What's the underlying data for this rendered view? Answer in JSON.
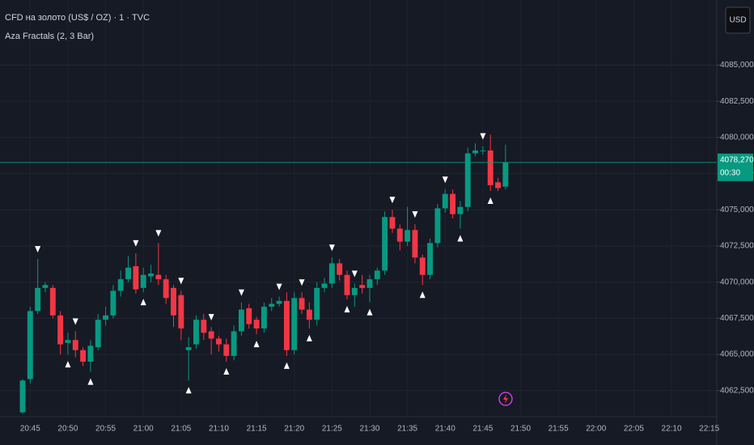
{
  "header": {
    "symbol": "CFD на золото (US$ / OZ) · 1 · TVC",
    "indicator": "Aza Fractals (2, 3 Bar)",
    "currency": "USD"
  },
  "chart_data": {
    "type": "candlestick",
    "x": [
      "20:44",
      "20:45",
      "20:46",
      "20:47",
      "20:48",
      "20:49",
      "20:50",
      "20:51",
      "20:52",
      "20:53",
      "20:54",
      "20:55",
      "20:56",
      "20:57",
      "20:58",
      "20:59",
      "21:00",
      "21:01",
      "21:02",
      "21:03",
      "21:04",
      "21:05",
      "21:06",
      "21:07",
      "21:08",
      "21:09",
      "21:10",
      "21:11",
      "21:12",
      "21:13",
      "21:14",
      "21:15",
      "21:16",
      "21:17",
      "21:18",
      "21:19",
      "21:20",
      "21:21",
      "21:22",
      "21:23",
      "21:24",
      "21:25",
      "21:26",
      "21:27",
      "21:28",
      "21:29",
      "21:30",
      "21:31",
      "21:32",
      "21:33",
      "21:34",
      "21:35",
      "21:36",
      "21:37",
      "21:38",
      "21:39",
      "21:40",
      "21:41",
      "21:42",
      "21:43",
      "21:44",
      "21:45",
      "21:46",
      "21:47",
      "21:48"
    ],
    "open": [
      4061.0,
      4063.3,
      4068.0,
      4069.6,
      4069.6,
      4067.7,
      4065.8,
      4066.0,
      4065.3,
      4064.5,
      4065.5,
      4067.4,
      4067.7,
      4069.4,
      4070.2,
      4071.1,
      4069.6,
      4070.4,
      4070.5,
      4070.2,
      4069.6,
      4069.1,
      4065.3,
      4065.7,
      4067.4,
      4066.6,
      4066.1,
      4065.7,
      4064.9,
      4066.6,
      4068.2,
      4067.4,
      4066.8,
      4068.3,
      4068.5,
      4068.7,
      4065.3,
      4068.9,
      4068.1,
      4067.4,
      4069.6,
      4069.9,
      4071.3,
      4070.5,
      4069.1,
      4069.8,
      4069.6,
      4070.2,
      4070.8,
      4074.5,
      4073.7,
      4072.8,
      4073.6,
      4071.7,
      4070.5,
      4072.7,
      4075.1,
      4076.1,
      4074.7,
      4075.2,
      4078.9,
      4079.1,
      4079.1,
      4076.9,
      4076.6
    ],
    "high": [
      4063.3,
      4068.3,
      4071.6,
      4070.0,
      4069.8,
      4068.0,
      4066.5,
      4066.6,
      4065.5,
      4066.0,
      4067.8,
      4068.3,
      4069.8,
      4070.8,
      4071.8,
      4072.0,
      4071.0,
      4071.2,
      4072.7,
      4070.5,
      4069.8,
      4069.4,
      4066.2,
      4067.7,
      4067.8,
      4066.9,
      4066.3,
      4066.1,
      4067.0,
      4068.6,
      4068.5,
      4067.6,
      4068.6,
      4068.9,
      4069.0,
      4069.3,
      4069.3,
      4069.3,
      4068.6,
      4070.0,
      4070.3,
      4071.7,
      4071.6,
      4070.8,
      4069.9,
      4070.5,
      4070.5,
      4071.0,
      4074.9,
      4075.0,
      4074.0,
      4075.2,
      4074.0,
      4071.9,
      4073.0,
      4075.4,
      4076.4,
      4076.4,
      4075.6,
      4079.3,
      4079.6,
      4079.4,
      4080.2,
      4077.2,
      4079.5
    ],
    "low": [
      4060.9,
      4063.0,
      4067.8,
      4069.3,
      4067.5,
      4065.0,
      4065.0,
      4064.8,
      4064.2,
      4063.8,
      4065.3,
      4067.0,
      4067.5,
      4069.0,
      4070.0,
      4069.2,
      4069.3,
      4070.0,
      4069.8,
      4068.5,
      4066.9,
      4066.0,
      4063.2,
      4065.4,
      4066.0,
      4065.0,
      4065.2,
      4064.5,
      4064.6,
      4066.3,
      4066.8,
      4066.4,
      4066.5,
      4068.0,
      4068.3,
      4064.9,
      4065.0,
      4067.8,
      4066.8,
      4067.0,
      4069.3,
      4069.6,
      4070.1,
      4068.8,
      4068.3,
      4069.2,
      4068.6,
      4069.8,
      4070.5,
      4073.4,
      4072.2,
      4072.5,
      4071.3,
      4069.8,
      4070.2,
      4072.4,
      4074.8,
      4074.4,
      4073.7,
      4074.9,
      4078.7,
      4078.8,
      4076.3,
      4076.3,
      4076.4
    ],
    "close": [
      4063.2,
      4068.0,
      4069.6,
      4069.8,
      4067.7,
      4065.7,
      4066.0,
      4065.3,
      4064.5,
      4065.6,
      4067.4,
      4067.7,
      4069.4,
      4070.2,
      4071.0,
      4069.5,
      4070.5,
      4070.6,
      4070.2,
      4068.9,
      4067.7,
      4066.8,
      4065.5,
      4067.4,
      4066.5,
      4066.1,
      4065.7,
      4064.9,
      4066.6,
      4068.1,
      4067.1,
      4066.8,
      4068.3,
      4068.5,
      4068.7,
      4065.3,
      4068.9,
      4068.1,
      4067.4,
      4069.6,
      4069.9,
      4071.3,
      4070.5,
      4069.1,
      4069.6,
      4069.6,
      4070.2,
      4070.8,
      4074.5,
      4073.7,
      4072.8,
      4073.6,
      4071.7,
      4070.5,
      4072.7,
      4075.1,
      4076.1,
      4074.7,
      4075.2,
      4078.9,
      4079.1,
      4079.1,
      4076.7,
      4076.5,
      4078.27
    ],
    "up_color": "#089981",
    "down_color": "#f23645",
    "fractal_high_x": [
      "20:46",
      "20:51",
      "20:59",
      "21:02",
      "21:05",
      "21:09",
      "21:13",
      "21:18",
      "21:21",
      "21:25",
      "21:28",
      "21:33",
      "21:36",
      "21:40",
      "21:45"
    ],
    "fractal_low_x": [
      "20:50",
      "20:53",
      "21:00",
      "21:06",
      "21:11",
      "21:15",
      "21:19",
      "21:22",
      "21:27",
      "21:30",
      "21:37",
      "21:42",
      "21:46"
    ],
    "xlim": [
      "20:41",
      "22:16"
    ],
    "xticks": [
      "20:45",
      "20:50",
      "20:55",
      "21:00",
      "21:05",
      "21:10",
      "21:15",
      "21:20",
      "21:25",
      "21:30",
      "21:35",
      "21:40",
      "21:45",
      "21:50",
      "21:55",
      "22:00",
      "22:05",
      "22:10",
      "22:15"
    ],
    "ylim": [
      4060.7,
      4089.5
    ],
    "yticks": [
      {
        "value": 4062.5,
        "label": "4062,500"
      },
      {
        "value": 4065,
        "label": "4065,000"
      },
      {
        "value": 4067.5,
        "label": "4067,500"
      },
      {
        "value": 4070,
        "label": "4070,000"
      },
      {
        "value": 4072.5,
        "label": "4072,500"
      },
      {
        "value": 4075,
        "label": "4075,000"
      },
      {
        "value": 4077.5,
        "label": "4077,500"
      },
      {
        "value": 4080,
        "label": "4080,000"
      },
      {
        "value": 4082.5,
        "label": "4082,500"
      },
      {
        "value": 4085,
        "label": "4085,000"
      }
    ],
    "last_price": {
      "value": 4078.27,
      "label": "4078,270"
    },
    "countdown": "00:30",
    "grid": true
  }
}
